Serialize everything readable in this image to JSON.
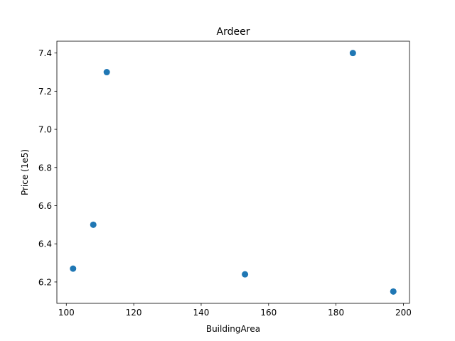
{
  "chart_data": {
    "type": "scatter",
    "title": "Ardeer",
    "xlabel": "BuildingArea",
    "ylabel": "Price (1e5)",
    "xlim": [
      97.2,
      201.8
    ],
    "ylim": [
      6.088,
      7.462
    ],
    "xticks": [
      100,
      120,
      140,
      160,
      180,
      200
    ],
    "yticks": [
      6.2,
      6.4,
      6.6,
      6.8,
      7.0,
      7.2,
      7.4
    ],
    "xtick_labels": [
      "100",
      "120",
      "140",
      "160",
      "180",
      "200"
    ],
    "ytick_labels": [
      "6.2",
      "6.4",
      "6.6",
      "6.8",
      "7.0",
      "7.2",
      "7.4"
    ],
    "grid": false,
    "colors": {
      "marker": "#1f77b4"
    },
    "points": [
      {
        "x": 102,
        "y": 6.27
      },
      {
        "x": 108,
        "y": 6.5
      },
      {
        "x": 112,
        "y": 7.3
      },
      {
        "x": 153,
        "y": 6.24
      },
      {
        "x": 185,
        "y": 7.4
      },
      {
        "x": 197,
        "y": 6.15
      }
    ]
  }
}
